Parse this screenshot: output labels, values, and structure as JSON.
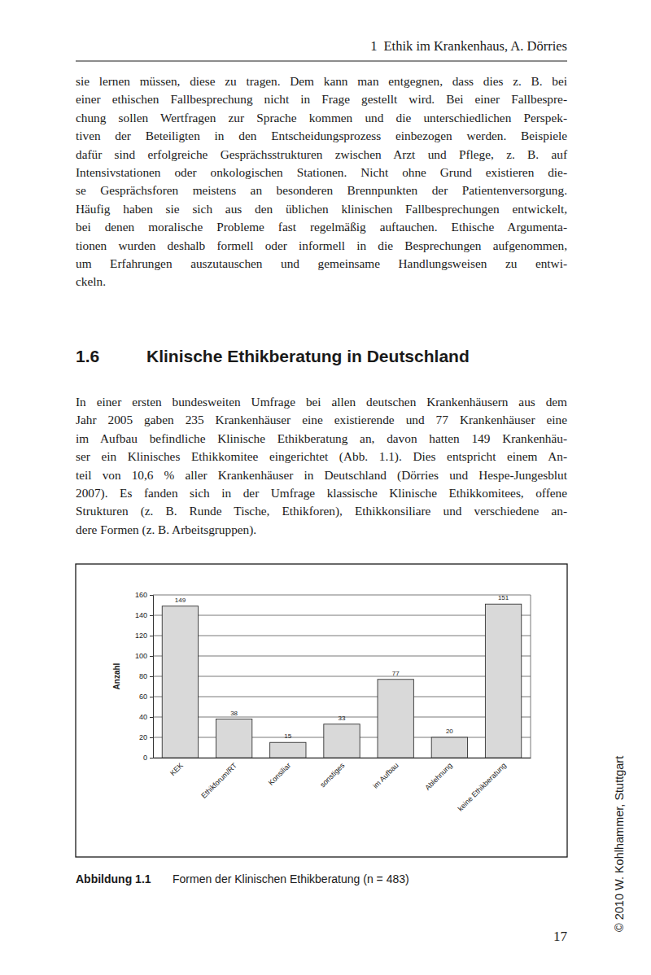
{
  "header": {
    "chapter": "1",
    "text": "Ethik im Krankenhaus, A. Dörries"
  },
  "paragraph_1": {
    "lines": [
      "sie lernen müssen, diese zu tragen. Dem kann man entgegnen, dass dies z. B. bei",
      "einer ethischen Fallbesprechung nicht in Frage gestellt wird. Bei einer Fallbespre-",
      "chung sollen Wertfragen zur Sprache kommen und die unterschiedlichen Perspek-",
      "tiven der Beteiligten in den Entscheidungsprozess einbezogen werden. Beispiele",
      "dafür sind erfolgreiche Gesprächsstrukturen zwischen Arzt und Pflege, z. B. auf",
      "Intensivstationen oder onkologischen Stationen. Nicht ohne Grund existieren die-",
      "se Gesprächsforen meistens an besonderen Brennpunkten der Patientenversorgung.",
      "Häufig haben sie sich aus den üblichen klinischen Fallbesprechungen entwickelt,",
      "bei denen moralische Probleme fast regelmäßig auftauchen. Ethische Argumenta-",
      "tionen wurden deshalb formell oder informell in die Besprechungen aufgenommen,",
      "um Erfahrungen auszutauschen und gemeinsame Handlungsweisen zu entwi-",
      "ckeln."
    ]
  },
  "section": {
    "number": "1.6",
    "title": "Klinische Ethikberatung in Deutschland"
  },
  "paragraph_2": {
    "lines": [
      "In einer ersten bundesweiten Umfrage bei allen deutschen Krankenhäusern aus dem",
      "Jahr 2005 gaben 235 Krankenhäuser eine existierende und 77 Krankenhäuser eine",
      "im Aufbau befindliche Klinische Ethikberatung an, davon hatten 149 Krankenhäu-",
      "ser ein Klinisches Ethikkomitee eingerichtet (Abb. 1.1). Dies entspricht einem An-",
      "teil von 10,6 % aller Krankenhäuser in Deutschland (Dörries und Hespe-Jungesblut",
      "2007). Es fanden sich in der Umfrage klassische Klinische Ethikkomitees, offene",
      "Strukturen (z. B. Runde Tische, Ethikforen), Ethikkonsiliare und verschiedene an-",
      "dere Formen (z. B. Arbeitsgruppen)."
    ]
  },
  "chart_data": {
    "type": "bar",
    "y_label": "Anzahl",
    "categories": [
      "KEK",
      "Ethikforum/RT",
      "Konsiliar",
      "sonstiges",
      "im Aufbau",
      "Ablehnung",
      "keine Ethikberatung"
    ],
    "values": [
      149,
      38,
      15,
      33,
      77,
      20,
      151
    ],
    "color": "#d9d9d9",
    "ylim": [
      0,
      160
    ],
    "yticks": [
      0,
      20,
      40,
      60,
      80,
      100,
      120,
      140,
      160
    ],
    "grid": true,
    "data_labels": true
  },
  "caption": {
    "label": "Abbildung 1.1",
    "text": "Formen der Klinischen Ethikberatung (n = 483)"
  },
  "page_number": "17",
  "copyright": "© 2010 W. Kohlhammer, Stuttgart"
}
